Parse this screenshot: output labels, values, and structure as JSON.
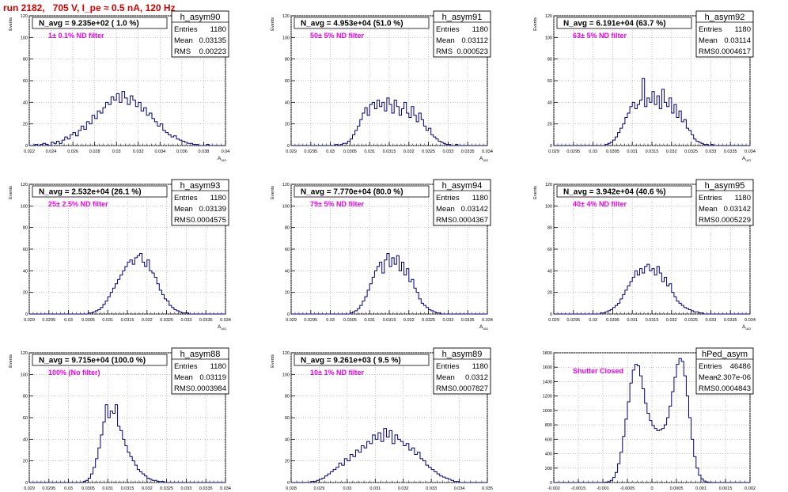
{
  "run_title": "run 2182,   705 V, I_pe ≈ 0.5 nA, 120 Hz",
  "colors": {
    "hist": "#000080",
    "note": "#ee00ee",
    "title": "#d40000",
    "grid": "#aaaaaa"
  },
  "chart_data": [
    {
      "type": "bar",
      "name": "h_asym90",
      "title": "N_avg = 9.235e+02 ( 1.0 %)",
      "note": "1± 0.1% ND filter",
      "ylabel": "Events",
      "xlabel": "A_UID",
      "xlim": [
        0.022,
        0.04
      ],
      "ylim": [
        0,
        120
      ],
      "xticks": [
        "0.022",
        "0.024",
        "0.026",
        "0.028",
        "0.03",
        "0.032",
        "0.034",
        "0.036",
        "0.038",
        "0.04"
      ],
      "yticks": [
        "0",
        "20",
        "40",
        "60",
        "80",
        "100",
        "120"
      ],
      "stats": {
        "entries": "1180",
        "mean": "0.03135",
        "rms": "0.00223"
      },
      "values": [
        0,
        0,
        1,
        0,
        1,
        2,
        1,
        0,
        3,
        2,
        4,
        2,
        5,
        8,
        6,
        10,
        12,
        9,
        14,
        18,
        15,
        22,
        20,
        28,
        25,
        32,
        30,
        35,
        40,
        38,
        45,
        42,
        48,
        40,
        50,
        44,
        38,
        46,
        42,
        36,
        40,
        32,
        35,
        28,
        30,
        25,
        22,
        18,
        20,
        14,
        12,
        10,
        8,
        9,
        6,
        5,
        4,
        3,
        2,
        2,
        1,
        1,
        0,
        0,
        0,
        1,
        0,
        0,
        0,
        0,
        0,
        0
      ]
    },
    {
      "type": "bar",
      "name": "h_asym91",
      "title": "N_avg = 4.953e+04 (51.0 %)",
      "note": "50± 5% ND filter",
      "ylabel": "Events",
      "xlabel": "A_UID",
      "xlim": [
        0.029,
        0.034
      ],
      "ylim": [
        0,
        120
      ],
      "xticks": [
        "0.029",
        "0.0295",
        "0.03",
        "0.0305",
        "0.031",
        "0.0315",
        "0.032",
        "0.0325",
        "0.033",
        "0.0335",
        "0.034"
      ],
      "yticks": [
        "0",
        "20",
        "40",
        "60",
        "80",
        "100",
        "120"
      ],
      "stats": {
        "entries": "1180",
        "mean": "0.03112",
        "rms": "0.000523"
      },
      "values": [
        0,
        0,
        0,
        0,
        0,
        0,
        0,
        0,
        0,
        0,
        0,
        0,
        0,
        0,
        0,
        0,
        0,
        0,
        1,
        0,
        1,
        2,
        2,
        4,
        6,
        10,
        14,
        18,
        24,
        30,
        35,
        28,
        38,
        40,
        34,
        42,
        36,
        40,
        32,
        44,
        38,
        30,
        42,
        36,
        28,
        34,
        40,
        30,
        26,
        36,
        28,
        22,
        30,
        24,
        18,
        14,
        16,
        10,
        8,
        6,
        4,
        3,
        2,
        1,
        1,
        0,
        0,
        1,
        0,
        0,
        0,
        0,
        0,
        0,
        0,
        0,
        0,
        0,
        0,
        0
      ]
    },
    {
      "type": "bar",
      "name": "h_asym92",
      "title": "N_avg = 6.191e+04 (63.7 %)",
      "note": "63± 5% ND filter",
      "ylabel": "Events",
      "xlabel": "A_UID",
      "xlim": [
        0.029,
        0.034
      ],
      "ylim": [
        0,
        120
      ],
      "xticks": [
        "0.029",
        "0.0295",
        "0.03",
        "0.0305",
        "0.031",
        "0.0315",
        "0.032",
        "0.0325",
        "0.033",
        "0.0335",
        "0.034"
      ],
      "yticks": [
        "0",
        "20",
        "40",
        "60",
        "80",
        "100",
        "120"
      ],
      "stats": {
        "entries": "1180",
        "mean": "0.03114",
        "rms": "0.0004617"
      },
      "values": [
        0,
        0,
        0,
        0,
        0,
        0,
        0,
        0,
        0,
        0,
        0,
        0,
        0,
        0,
        0,
        0,
        0,
        0,
        0,
        0,
        0,
        1,
        2,
        3,
        5,
        8,
        12,
        16,
        20,
        26,
        30,
        36,
        40,
        34,
        38,
        42,
        62,
        36,
        44,
        40,
        50,
        38,
        46,
        34,
        52,
        40,
        36,
        44,
        30,
        38,
        26,
        32,
        22,
        24,
        16,
        14,
        10,
        6,
        4,
        3,
        2,
        1,
        1,
        0,
        1,
        0,
        0,
        0,
        0,
        0,
        0,
        0,
        0,
        0,
        0,
        0,
        0,
        0,
        0,
        0
      ]
    },
    {
      "type": "bar",
      "name": "h_asym93",
      "title": "N_avg = 2.532e+04 (26.1 %)",
      "note": "25± 2.5% ND filter",
      "ylabel": "Events",
      "xlabel": "A_UID",
      "xlim": [
        0.029,
        0.034
      ],
      "ylim": [
        0,
        120
      ],
      "xticks": [
        "0.029",
        "0.0295",
        "0.03",
        "0.0305",
        "0.031",
        "0.0315",
        "0.032",
        "0.0325",
        "0.033",
        "0.0335",
        "0.034"
      ],
      "yticks": [
        "0",
        "20",
        "40",
        "60",
        "80",
        "100",
        "120"
      ],
      "stats": {
        "entries": "1180",
        "mean": "0.03139",
        "rms": "0.0004575"
      },
      "values": [
        0,
        0,
        0,
        0,
        0,
        0,
        0,
        0,
        0,
        0,
        0,
        0,
        0,
        0,
        0,
        0,
        0,
        0,
        0,
        0,
        0,
        0,
        0,
        0,
        1,
        1,
        2,
        3,
        4,
        6,
        9,
        12,
        16,
        20,
        24,
        28,
        32,
        36,
        40,
        44,
        48,
        50,
        46,
        52,
        54,
        56,
        48,
        44,
        50,
        40,
        38,
        34,
        28,
        22,
        18,
        14,
        12,
        8,
        6,
        4,
        3,
        2,
        1,
        1,
        1,
        0,
        0,
        0,
        0,
        0,
        0,
        0,
        0,
        0,
        0,
        0,
        0,
        0,
        0,
        0
      ]
    },
    {
      "type": "bar",
      "name": "h_asym94",
      "title": "N_avg = 7.770e+04 (80.0 %)",
      "note": "79± 5% ND filter",
      "ylabel": "Events",
      "xlabel": "A_UID",
      "xlim": [
        0.029,
        0.034
      ],
      "ylim": [
        0,
        120
      ],
      "xticks": [
        "0.029",
        "0.0295",
        "0.03",
        "0.0305",
        "0.031",
        "0.0315",
        "0.032",
        "0.0325",
        "0.033",
        "0.0335",
        "0.034"
      ],
      "yticks": [
        "0",
        "20",
        "40",
        "60",
        "80",
        "100",
        "120"
      ],
      "stats": {
        "entries": "1180",
        "mean": "0.03142",
        "rms": "0.0004367"
      },
      "values": [
        0,
        0,
        0,
        0,
        0,
        0,
        0,
        0,
        0,
        0,
        0,
        0,
        0,
        0,
        0,
        0,
        0,
        0,
        0,
        0,
        0,
        0,
        0,
        0,
        1,
        2,
        3,
        5,
        8,
        12,
        16,
        22,
        28,
        34,
        40,
        44,
        48,
        38,
        50,
        56,
        44,
        52,
        46,
        54,
        40,
        48,
        36,
        42,
        30,
        32,
        24,
        20,
        14,
        10,
        8,
        6,
        4,
        3,
        2,
        1,
        1,
        0,
        0,
        0,
        0,
        0,
        0,
        0,
        0,
        0,
        0,
        0,
        0,
        0,
        0,
        0,
        0,
        0,
        0,
        0
      ]
    },
    {
      "type": "bar",
      "name": "h_asym95",
      "title": "N_avg = 3.942e+04 (40.6 %)",
      "note": "40± 4% ND filter",
      "ylabel": "Events",
      "xlabel": "A_UID",
      "xlim": [
        0.029,
        0.034
      ],
      "ylim": [
        0,
        120
      ],
      "xticks": [
        "0.029",
        "0.0295",
        "0.03",
        "0.0305",
        "0.031",
        "0.0315",
        "0.032",
        "0.0325",
        "0.033",
        "0.0335",
        "0.034"
      ],
      "yticks": [
        "0",
        "20",
        "40",
        "60",
        "80",
        "100",
        "120"
      ],
      "stats": {
        "entries": "1180",
        "mean": "0.03142",
        "rms": "0.0005229"
      },
      "values": [
        0,
        0,
        0,
        0,
        0,
        0,
        0,
        0,
        0,
        0,
        0,
        0,
        0,
        0,
        0,
        0,
        0,
        0,
        0,
        1,
        1,
        2,
        3,
        4,
        6,
        8,
        10,
        14,
        18,
        22,
        26,
        30,
        34,
        40,
        36,
        42,
        38,
        44,
        46,
        40,
        42,
        36,
        44,
        38,
        30,
        34,
        26,
        28,
        20,
        16,
        12,
        10,
        8,
        6,
        5,
        4,
        3,
        2,
        2,
        1,
        1,
        0,
        0,
        0,
        0,
        0,
        0,
        0,
        0,
        0,
        0,
        0,
        0,
        0,
        0,
        0,
        0,
        0,
        0,
        0
      ]
    },
    {
      "type": "bar",
      "name": "h_asym88",
      "title": "N_avg = 9.715e+04 (100.0 %)",
      "note": "100% (No filter)",
      "ylabel": "Events",
      "xlabel": "A_UID",
      "xlim": [
        0.029,
        0.034
      ],
      "ylim": [
        0,
        120
      ],
      "xticks": [
        "0.029",
        "0.0295",
        "0.03",
        "0.0305",
        "0.031",
        "0.0315",
        "0.032",
        "0.0325",
        "0.033",
        "0.0335",
        "0.034"
      ],
      "yticks": [
        "0",
        "20",
        "40",
        "60",
        "80",
        "100",
        "120"
      ],
      "stats": {
        "entries": "1180",
        "mean": "0.03119",
        "rms": "0.0003984"
      },
      "values": [
        0,
        0,
        0,
        0,
        0,
        0,
        0,
        0,
        0,
        0,
        0,
        0,
        0,
        0,
        0,
        0,
        0,
        0,
        0,
        0,
        0,
        0,
        1,
        2,
        4,
        8,
        14,
        22,
        32,
        44,
        56,
        72,
        60,
        66,
        64,
        72,
        52,
        48,
        40,
        34,
        28,
        24,
        20,
        16,
        12,
        10,
        8,
        6,
        4,
        3,
        2,
        2,
        1,
        1,
        1,
        0,
        0,
        0,
        0,
        0,
        0,
        0,
        0,
        0,
        0,
        0,
        0,
        0,
        0,
        0,
        0,
        0,
        0,
        0,
        0,
        0,
        0,
        0,
        0,
        0
      ]
    },
    {
      "type": "bar",
      "name": "h_asym89",
      "title": "N_avg = 9.261e+03 ( 9.5 %)",
      "note": "10± 1% ND filter",
      "ylabel": "Events",
      "xlabel": "A_UID",
      "xlim": [
        0.028,
        0.035
      ],
      "ylim": [
        0,
        120
      ],
      "xticks": [
        "0.028",
        "0.029",
        "0.03",
        "0.031",
        "0.032",
        "0.033",
        "0.034",
        "0.035"
      ],
      "yticks": [
        "0",
        "20",
        "40",
        "60",
        "80",
        "100",
        "120"
      ],
      "stats": {
        "entries": "1180",
        "mean": "0.0312",
        "rms": "0.0007827"
      },
      "values": [
        0,
        0,
        0,
        0,
        0,
        0,
        0,
        1,
        1,
        2,
        3,
        4,
        6,
        8,
        10,
        12,
        14,
        18,
        16,
        22,
        20,
        26,
        24,
        30,
        28,
        34,
        32,
        38,
        36,
        44,
        40,
        46,
        38,
        50,
        42,
        48,
        36,
        44,
        40,
        38,
        34,
        36,
        30,
        32,
        26,
        28,
        22,
        20,
        16,
        14,
        12,
        10,
        8,
        6,
        5,
        4,
        3,
        2,
        1,
        1,
        0,
        0,
        0,
        0,
        0,
        0,
        0,
        0,
        0,
        0
      ]
    },
    {
      "type": "bar",
      "name": "hPed_asym",
      "title": "",
      "note": "Shutter Closed",
      "ylabel": "",
      "xlabel": "A_UID",
      "xlim": [
        -0.002,
        0.002
      ],
      "ylim": [
        0,
        1800
      ],
      "xticks": [
        "-0.002",
        "-0.0015",
        "-0.001",
        "-0.0005",
        "0",
        "0.0005",
        "0.001",
        "0.0015",
        "0.002"
      ],
      "yticks": [
        "0",
        "200",
        "400",
        "600",
        "800",
        "1000",
        "1200",
        "1400",
        "1600",
        "1800"
      ],
      "stats": {
        "entries": "46486",
        "mean": "-2.307e-06",
        "rms": "0.0004843"
      },
      "values": [
        0,
        0,
        0,
        0,
        0,
        0,
        0,
        0,
        0,
        0,
        0,
        0,
        0,
        0,
        0,
        0,
        0,
        0,
        0,
        0,
        2,
        5,
        12,
        30,
        70,
        140,
        260,
        420,
        640,
        880,
        1120,
        1380,
        1560,
        1640,
        1620,
        1480,
        1300,
        1100,
        960,
        860,
        790,
        750,
        720,
        730,
        750,
        800,
        900,
        1060,
        1260,
        1460,
        1640,
        1720,
        1680,
        1480,
        1200,
        900,
        600,
        360,
        200,
        100,
        50,
        20,
        8,
        3,
        1,
        0,
        0,
        0,
        0,
        0,
        0,
        0,
        0,
        0,
        0,
        0,
        0,
        0,
        0,
        0
      ]
    }
  ]
}
